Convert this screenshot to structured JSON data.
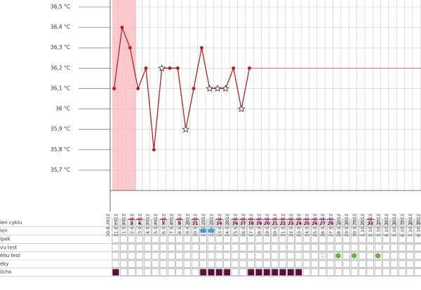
{
  "chart_data": {
    "type": "line",
    "categories": [
      "30.8.2012",
      "31.8.2012",
      "1.9.2012",
      "2.9.2012",
      "3.9.2012",
      "4.9.2012",
      "5.9.2012",
      "6.9.2012",
      "7.9.2012",
      "8.9.2012",
      "9.9.2012",
      "10.9.2012",
      "11.9.2012",
      "12.9.2012",
      "13.9.2012",
      "14.9.2012",
      "15.9.2012",
      "16.9.2012",
      "17.9.2012",
      "18.9.2012",
      "19.9.2012",
      "20.9.2012",
      "21.9.2012",
      "22.9.2012",
      "23.9.2012",
      "24.9.2012",
      "25.9.2012",
      "26.9.2012",
      "27.9.2012",
      "28.9.2012",
      "29.9.2012",
      "30.9.2012",
      "1.10.2012",
      "2.10.2012",
      "3.10.2012",
      "4.10.2012",
      "5.10.2012",
      "6.10.2012",
      "7.10.2012",
      "8.10.2012"
    ],
    "series": [
      {
        "color": "#b22222",
        "values": [
          null,
          36.1,
          36.4,
          36.3,
          36.1,
          36.2,
          35.8,
          36.2,
          36.2,
          36.2,
          35.9,
          36.1,
          36.3,
          36.1,
          36.1,
          36.1,
          36.2,
          36.0,
          36.2,
          null,
          null,
          null,
          null,
          null,
          null,
          null,
          null,
          null,
          null,
          null,
          null,
          null,
          null,
          null,
          null,
          null,
          null,
          null,
          null,
          null
        ],
        "markers": [
          null,
          "circle",
          "circle",
          "circle",
          "circle",
          "circle",
          "circle",
          "star",
          "circle",
          "circle",
          "star",
          "circle",
          "circle",
          "star",
          "star",
          "star",
          "circle",
          "star",
          "circle",
          null,
          null,
          null,
          null,
          null,
          null,
          null,
          null,
          null,
          null,
          null,
          null,
          null,
          null,
          null,
          null,
          null,
          null,
          null,
          null,
          null
        ]
      }
    ],
    "reference_line": 36.2,
    "period": [
      1,
      3
    ],
    "ylim": [
      35.6,
      36.5
    ],
    "yticks": [
      {
        "value": 35.7,
        "label": "35,7 °C"
      },
      {
        "value": 35.8,
        "label": "35,8 °C"
      },
      {
        "value": 35.9,
        "label": "35,9 °C"
      },
      {
        "value": 36,
        "label": "36 °C"
      },
      {
        "value": 36.1,
        "label": "36,1 °C"
      },
      {
        "value": 36.2,
        "label": "36,2 °C"
      },
      {
        "value": 36.3,
        "label": "36,3 °C"
      },
      {
        "value": 36.4,
        "label": "36,4 °C"
      },
      {
        "value": 36.5,
        "label": "36,5 °C"
      }
    ],
    "grid": true
  },
  "table": {
    "row_labels": [
      "len cyklu",
      "len",
      "ípek",
      "vu test",
      "ěhu test",
      "éky",
      "lícho"
    ],
    "day_numbers": [
      1,
      2,
      3,
      4,
      5,
      6,
      7,
      8,
      9,
      10,
      11,
      12,
      13,
      14,
      15,
      16,
      17,
      18,
      19,
      20,
      21,
      22,
      23,
      24,
      25,
      26,
      27,
      28,
      29,
      30,
      31,
      32,
      33,
      34,
      35,
      36,
      37,
      38,
      39
    ],
    "highlighted_days": [
      3,
      4,
      7,
      9,
      11,
      14,
      16,
      17,
      18,
      19,
      20,
      21,
      22,
      23,
      24,
      25,
      26,
      27,
      28,
      33
    ],
    "hlen_days": [
      12,
      13
    ],
    "test_dotted_days": [
      27
    ],
    "test_green_days": [
      29,
      31,
      34
    ],
    "milk_days": [
      1,
      12,
      13,
      14,
      15,
      18,
      19,
      20,
      21,
      22,
      23,
      24
    ]
  }
}
